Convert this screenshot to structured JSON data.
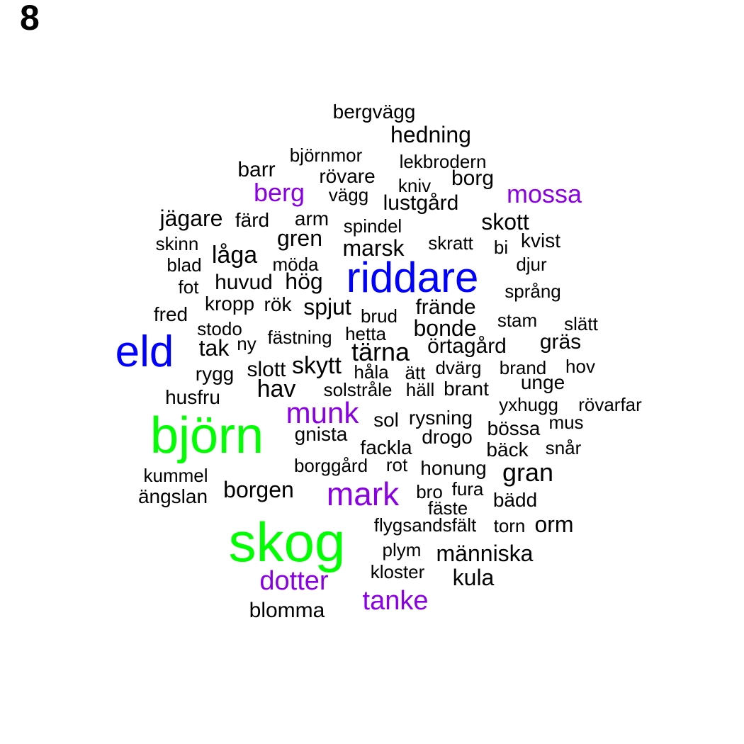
{
  "panel_number": "8",
  "colors": {
    "default": "#000000",
    "blue": "#0000ff",
    "green": "#00ff00",
    "purple": "#8a00e6"
  },
  "words": [
    {
      "text": "skog",
      "color": "green"
    },
    {
      "text": "björn",
      "color": "green"
    },
    {
      "text": "eld",
      "color": "blue"
    },
    {
      "text": "riddare",
      "color": "blue"
    },
    {
      "text": "mark",
      "color": "purple"
    },
    {
      "text": "munk",
      "color": "purple"
    },
    {
      "text": "dotter",
      "color": "purple"
    },
    {
      "text": "tanke",
      "color": "purple"
    },
    {
      "text": "berg",
      "color": "purple"
    },
    {
      "text": "mossa",
      "color": "purple"
    },
    {
      "text": "bergvägg",
      "color": "default"
    },
    {
      "text": "hedning",
      "color": "default"
    },
    {
      "text": "björnmor",
      "color": "default"
    },
    {
      "text": "lekbrodern",
      "color": "default"
    },
    {
      "text": "barr",
      "color": "default"
    },
    {
      "text": "rövare",
      "color": "default"
    },
    {
      "text": "borg",
      "color": "default"
    },
    {
      "text": "kniv",
      "color": "default"
    },
    {
      "text": "vägg",
      "color": "default"
    },
    {
      "text": "lustgård",
      "color": "default"
    },
    {
      "text": "jägare",
      "color": "default"
    },
    {
      "text": "färd",
      "color": "default"
    },
    {
      "text": "arm",
      "color": "default"
    },
    {
      "text": "spindel",
      "color": "default"
    },
    {
      "text": "skott",
      "color": "default"
    },
    {
      "text": "skinn",
      "color": "default"
    },
    {
      "text": "gren",
      "color": "default"
    },
    {
      "text": "marsk",
      "color": "default"
    },
    {
      "text": "skratt",
      "color": "default"
    },
    {
      "text": "bi",
      "color": "default"
    },
    {
      "text": "kvist",
      "color": "default"
    },
    {
      "text": "låga",
      "color": "default"
    },
    {
      "text": "blad",
      "color": "default"
    },
    {
      "text": "möda",
      "color": "default"
    },
    {
      "text": "djur",
      "color": "default"
    },
    {
      "text": "fot",
      "color": "default"
    },
    {
      "text": "huvud",
      "color": "default"
    },
    {
      "text": "hög",
      "color": "default"
    },
    {
      "text": "språng",
      "color": "default"
    },
    {
      "text": "fred",
      "color": "default"
    },
    {
      "text": "kropp",
      "color": "default"
    },
    {
      "text": "rök",
      "color": "default"
    },
    {
      "text": "spjut",
      "color": "default"
    },
    {
      "text": "brud",
      "color": "default"
    },
    {
      "text": "frände",
      "color": "default"
    },
    {
      "text": "stam",
      "color": "default"
    },
    {
      "text": "slätt",
      "color": "default"
    },
    {
      "text": "stodo",
      "color": "default"
    },
    {
      "text": "fästning",
      "color": "default"
    },
    {
      "text": "hetta",
      "color": "default"
    },
    {
      "text": "bonde",
      "color": "default"
    },
    {
      "text": "tak",
      "color": "default"
    },
    {
      "text": "ny",
      "color": "default"
    },
    {
      "text": "tärna",
      "color": "default"
    },
    {
      "text": "örtagård",
      "color": "default"
    },
    {
      "text": "gräs",
      "color": "default"
    },
    {
      "text": "rygg",
      "color": "default"
    },
    {
      "text": "slott",
      "color": "default"
    },
    {
      "text": "skytt",
      "color": "default"
    },
    {
      "text": "håla",
      "color": "default"
    },
    {
      "text": "ätt",
      "color": "default"
    },
    {
      "text": "dvärg",
      "color": "default"
    },
    {
      "text": "brand",
      "color": "default"
    },
    {
      "text": "hov",
      "color": "default"
    },
    {
      "text": "unge",
      "color": "default"
    },
    {
      "text": "husfru",
      "color": "default"
    },
    {
      "text": "hav",
      "color": "default"
    },
    {
      "text": "solstråle",
      "color": "default"
    },
    {
      "text": "häll",
      "color": "default"
    },
    {
      "text": "brant",
      "color": "default"
    },
    {
      "text": "yxhugg",
      "color": "default"
    },
    {
      "text": "rövarfar",
      "color": "default"
    },
    {
      "text": "sol",
      "color": "default"
    },
    {
      "text": "rysning",
      "color": "default"
    },
    {
      "text": "mus",
      "color": "default"
    },
    {
      "text": "bössa",
      "color": "default"
    },
    {
      "text": "gnista",
      "color": "default"
    },
    {
      "text": "drogo",
      "color": "default"
    },
    {
      "text": "fackla",
      "color": "default"
    },
    {
      "text": "bäck",
      "color": "default"
    },
    {
      "text": "snår",
      "color": "default"
    },
    {
      "text": "borggård",
      "color": "default"
    },
    {
      "text": "rot",
      "color": "default"
    },
    {
      "text": "honung",
      "color": "default"
    },
    {
      "text": "kummel",
      "color": "default"
    },
    {
      "text": "gran",
      "color": "default"
    },
    {
      "text": "borgen",
      "color": "default"
    },
    {
      "text": "bro",
      "color": "default"
    },
    {
      "text": "fura",
      "color": "default"
    },
    {
      "text": "ängslan",
      "color": "default"
    },
    {
      "text": "bädd",
      "color": "default"
    },
    {
      "text": "fäste",
      "color": "default"
    },
    {
      "text": "flygsandsfält",
      "color": "default"
    },
    {
      "text": "torn",
      "color": "default"
    },
    {
      "text": "orm",
      "color": "default"
    },
    {
      "text": "plym",
      "color": "default"
    },
    {
      "text": "människa",
      "color": "default"
    },
    {
      "text": "kloster",
      "color": "default"
    },
    {
      "text": "kula",
      "color": "default"
    },
    {
      "text": "blomma",
      "color": "default"
    }
  ]
}
